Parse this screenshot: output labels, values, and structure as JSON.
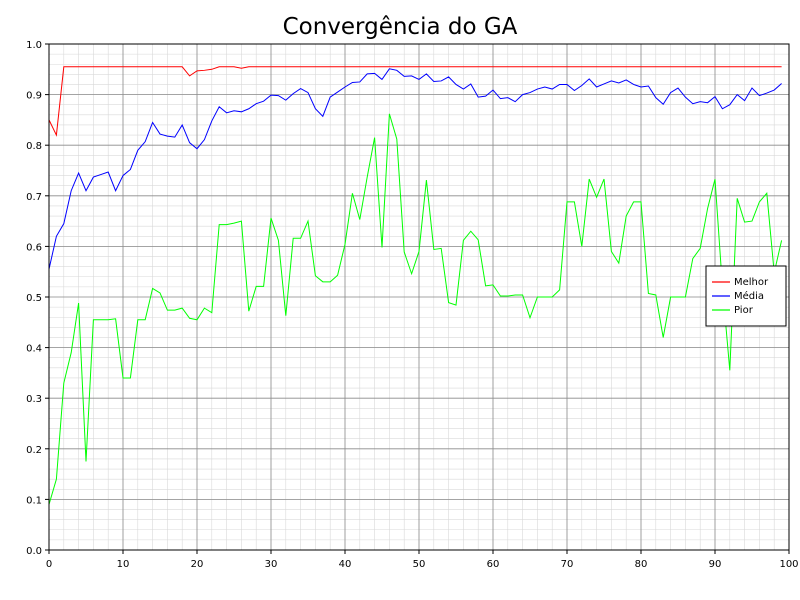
{
  "chart_data": {
    "type": "line",
    "title": "Convergência do GA",
    "xlabel": "",
    "ylabel": "",
    "xlim": [
      0,
      100
    ],
    "ylim": [
      0,
      1
    ],
    "x_ticks": [
      0,
      10,
      20,
      30,
      40,
      50,
      60,
      70,
      80,
      90,
      100
    ],
    "y_ticks": [
      "0.0",
      "0.1",
      "0.2",
      "0.3",
      "0.4",
      "0.5",
      "0.6",
      "0.7",
      "0.8",
      "0.9",
      "1.0"
    ],
    "grid": true,
    "legend_position": "right",
    "series": [
      {
        "name": "Melhor",
        "color": "#ff0000",
        "values": [
          0.85,
          0.82,
          0.955,
          0.955,
          0.955,
          0.955,
          0.955,
          0.955,
          0.955,
          0.955,
          0.955,
          0.955,
          0.955,
          0.955,
          0.955,
          0.955,
          0.955,
          0.955,
          0.955,
          0.937,
          0.947,
          0.948,
          0.95,
          0.955,
          0.955,
          0.955,
          0.952,
          0.955,
          0.955,
          0.955,
          0.955,
          0.955,
          0.955,
          0.955,
          0.955,
          0.955,
          0.955,
          0.955,
          0.955,
          0.955,
          0.955,
          0.955,
          0.955,
          0.955,
          0.955,
          0.955,
          0.955,
          0.955,
          0.955,
          0.955,
          0.955,
          0.955,
          0.955,
          0.955,
          0.955,
          0.955,
          0.955,
          0.955,
          0.955,
          0.955,
          0.955,
          0.955,
          0.955,
          0.955,
          0.955,
          0.955,
          0.955,
          0.955,
          0.955,
          0.955,
          0.955,
          0.955,
          0.955,
          0.955,
          0.955,
          0.955,
          0.955,
          0.955,
          0.955,
          0.955,
          0.955,
          0.955,
          0.955,
          0.955,
          0.955,
          0.955,
          0.955,
          0.955,
          0.955,
          0.955,
          0.955,
          0.955,
          0.955,
          0.955,
          0.955,
          0.955,
          0.955,
          0.955,
          0.955,
          0.955
        ]
      },
      {
        "name": "Média",
        "color": "#0000ff",
        "values": [
          0.555,
          0.62,
          0.645,
          0.71,
          0.745,
          0.71,
          0.737,
          0.742,
          0.747,
          0.71,
          0.74,
          0.752,
          0.79,
          0.807,
          0.845,
          0.822,
          0.818,
          0.816,
          0.84,
          0.805,
          0.793,
          0.811,
          0.848,
          0.876,
          0.864,
          0.868,
          0.866,
          0.872,
          0.882,
          0.887,
          0.899,
          0.898,
          0.889,
          0.902,
          0.912,
          0.904,
          0.872,
          0.857,
          0.895,
          0.905,
          0.915,
          0.924,
          0.925,
          0.941,
          0.942,
          0.93,
          0.951,
          0.948,
          0.936,
          0.937,
          0.93,
          0.941,
          0.926,
          0.927,
          0.935,
          0.92,
          0.911,
          0.921,
          0.895,
          0.897,
          0.909,
          0.892,
          0.894,
          0.886,
          0.9,
          0.904,
          0.911,
          0.915,
          0.911,
          0.92,
          0.92,
          0.908,
          0.918,
          0.931,
          0.915,
          0.921,
          0.927,
          0.923,
          0.929,
          0.92,
          0.915,
          0.917,
          0.894,
          0.881,
          0.904,
          0.913,
          0.895,
          0.882,
          0.886,
          0.884,
          0.896,
          0.872,
          0.88,
          0.9,
          0.888,
          0.913,
          0.898,
          0.903,
          0.909,
          0.922
        ]
      },
      {
        "name": "Pior",
        "color": "#00ff00",
        "values": [
          0.09,
          0.14,
          0.33,
          0.39,
          0.488,
          0.175,
          0.455,
          0.455,
          0.455,
          0.457,
          0.34,
          0.34,
          0.455,
          0.455,
          0.517,
          0.508,
          0.474,
          0.474,
          0.478,
          0.458,
          0.455,
          0.478,
          0.469,
          0.643,
          0.643,
          0.646,
          0.65,
          0.472,
          0.521,
          0.521,
          0.656,
          0.612,
          0.463,
          0.616,
          0.616,
          0.65,
          0.542,
          0.53,
          0.53,
          0.543,
          0.604,
          0.705,
          0.653,
          0.737,
          0.815,
          0.598,
          0.862,
          0.812,
          0.589,
          0.546,
          0.59,
          0.731,
          0.594,
          0.596,
          0.489,
          0.484,
          0.612,
          0.63,
          0.613,
          0.522,
          0.524,
          0.502,
          0.502,
          0.504,
          0.504,
          0.459,
          0.5,
          0.5,
          0.5,
          0.514,
          0.688,
          0.688,
          0.6,
          0.733,
          0.697,
          0.733,
          0.59,
          0.567,
          0.66,
          0.688,
          0.688,
          0.507,
          0.504,
          0.42,
          0.5,
          0.5,
          0.5,
          0.576,
          0.596,
          0.675,
          0.733,
          0.521,
          0.355,
          0.695,
          0.648,
          0.65,
          0.688,
          0.705,
          0.548,
          0.612
        ]
      }
    ]
  }
}
